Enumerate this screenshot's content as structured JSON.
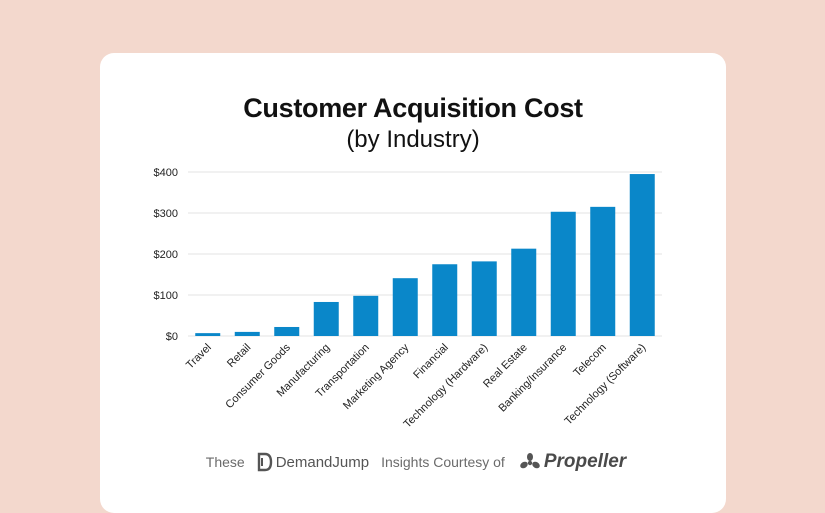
{
  "colors": {
    "bar": "#0a87c9",
    "grid": "#e3e3e3",
    "background": "#f3d8cd"
  },
  "chart_data": {
    "type": "bar",
    "title": "Customer Acquisition Cost",
    "subtitle": "(by Industry)",
    "xlabel": "",
    "ylabel": "",
    "ylim": [
      0,
      400
    ],
    "yticks": [
      {
        "value": 0,
        "label": "$0"
      },
      {
        "value": 100,
        "label": "$100"
      },
      {
        "value": 200,
        "label": "$200"
      },
      {
        "value": 300,
        "label": "$300"
      },
      {
        "value": 400,
        "label": "$400"
      }
    ],
    "categories": [
      "Travel",
      "Retail",
      "Consumer Goods",
      "Manufacturing",
      "Transportation",
      "Marketing Agency",
      "Financial",
      "Technology (Hardware)",
      "Real Estate",
      "Banking/Insurance",
      "Telecom",
      "Technology (Software)"
    ],
    "values": [
      7,
      10,
      22,
      83,
      98,
      141,
      175,
      182,
      213,
      303,
      315,
      395
    ],
    "grid": true
  },
  "footer": {
    "prefix": "These",
    "brand1": "DemandJump",
    "middle": "Insights Courtesy of",
    "brand2": "Propeller"
  }
}
